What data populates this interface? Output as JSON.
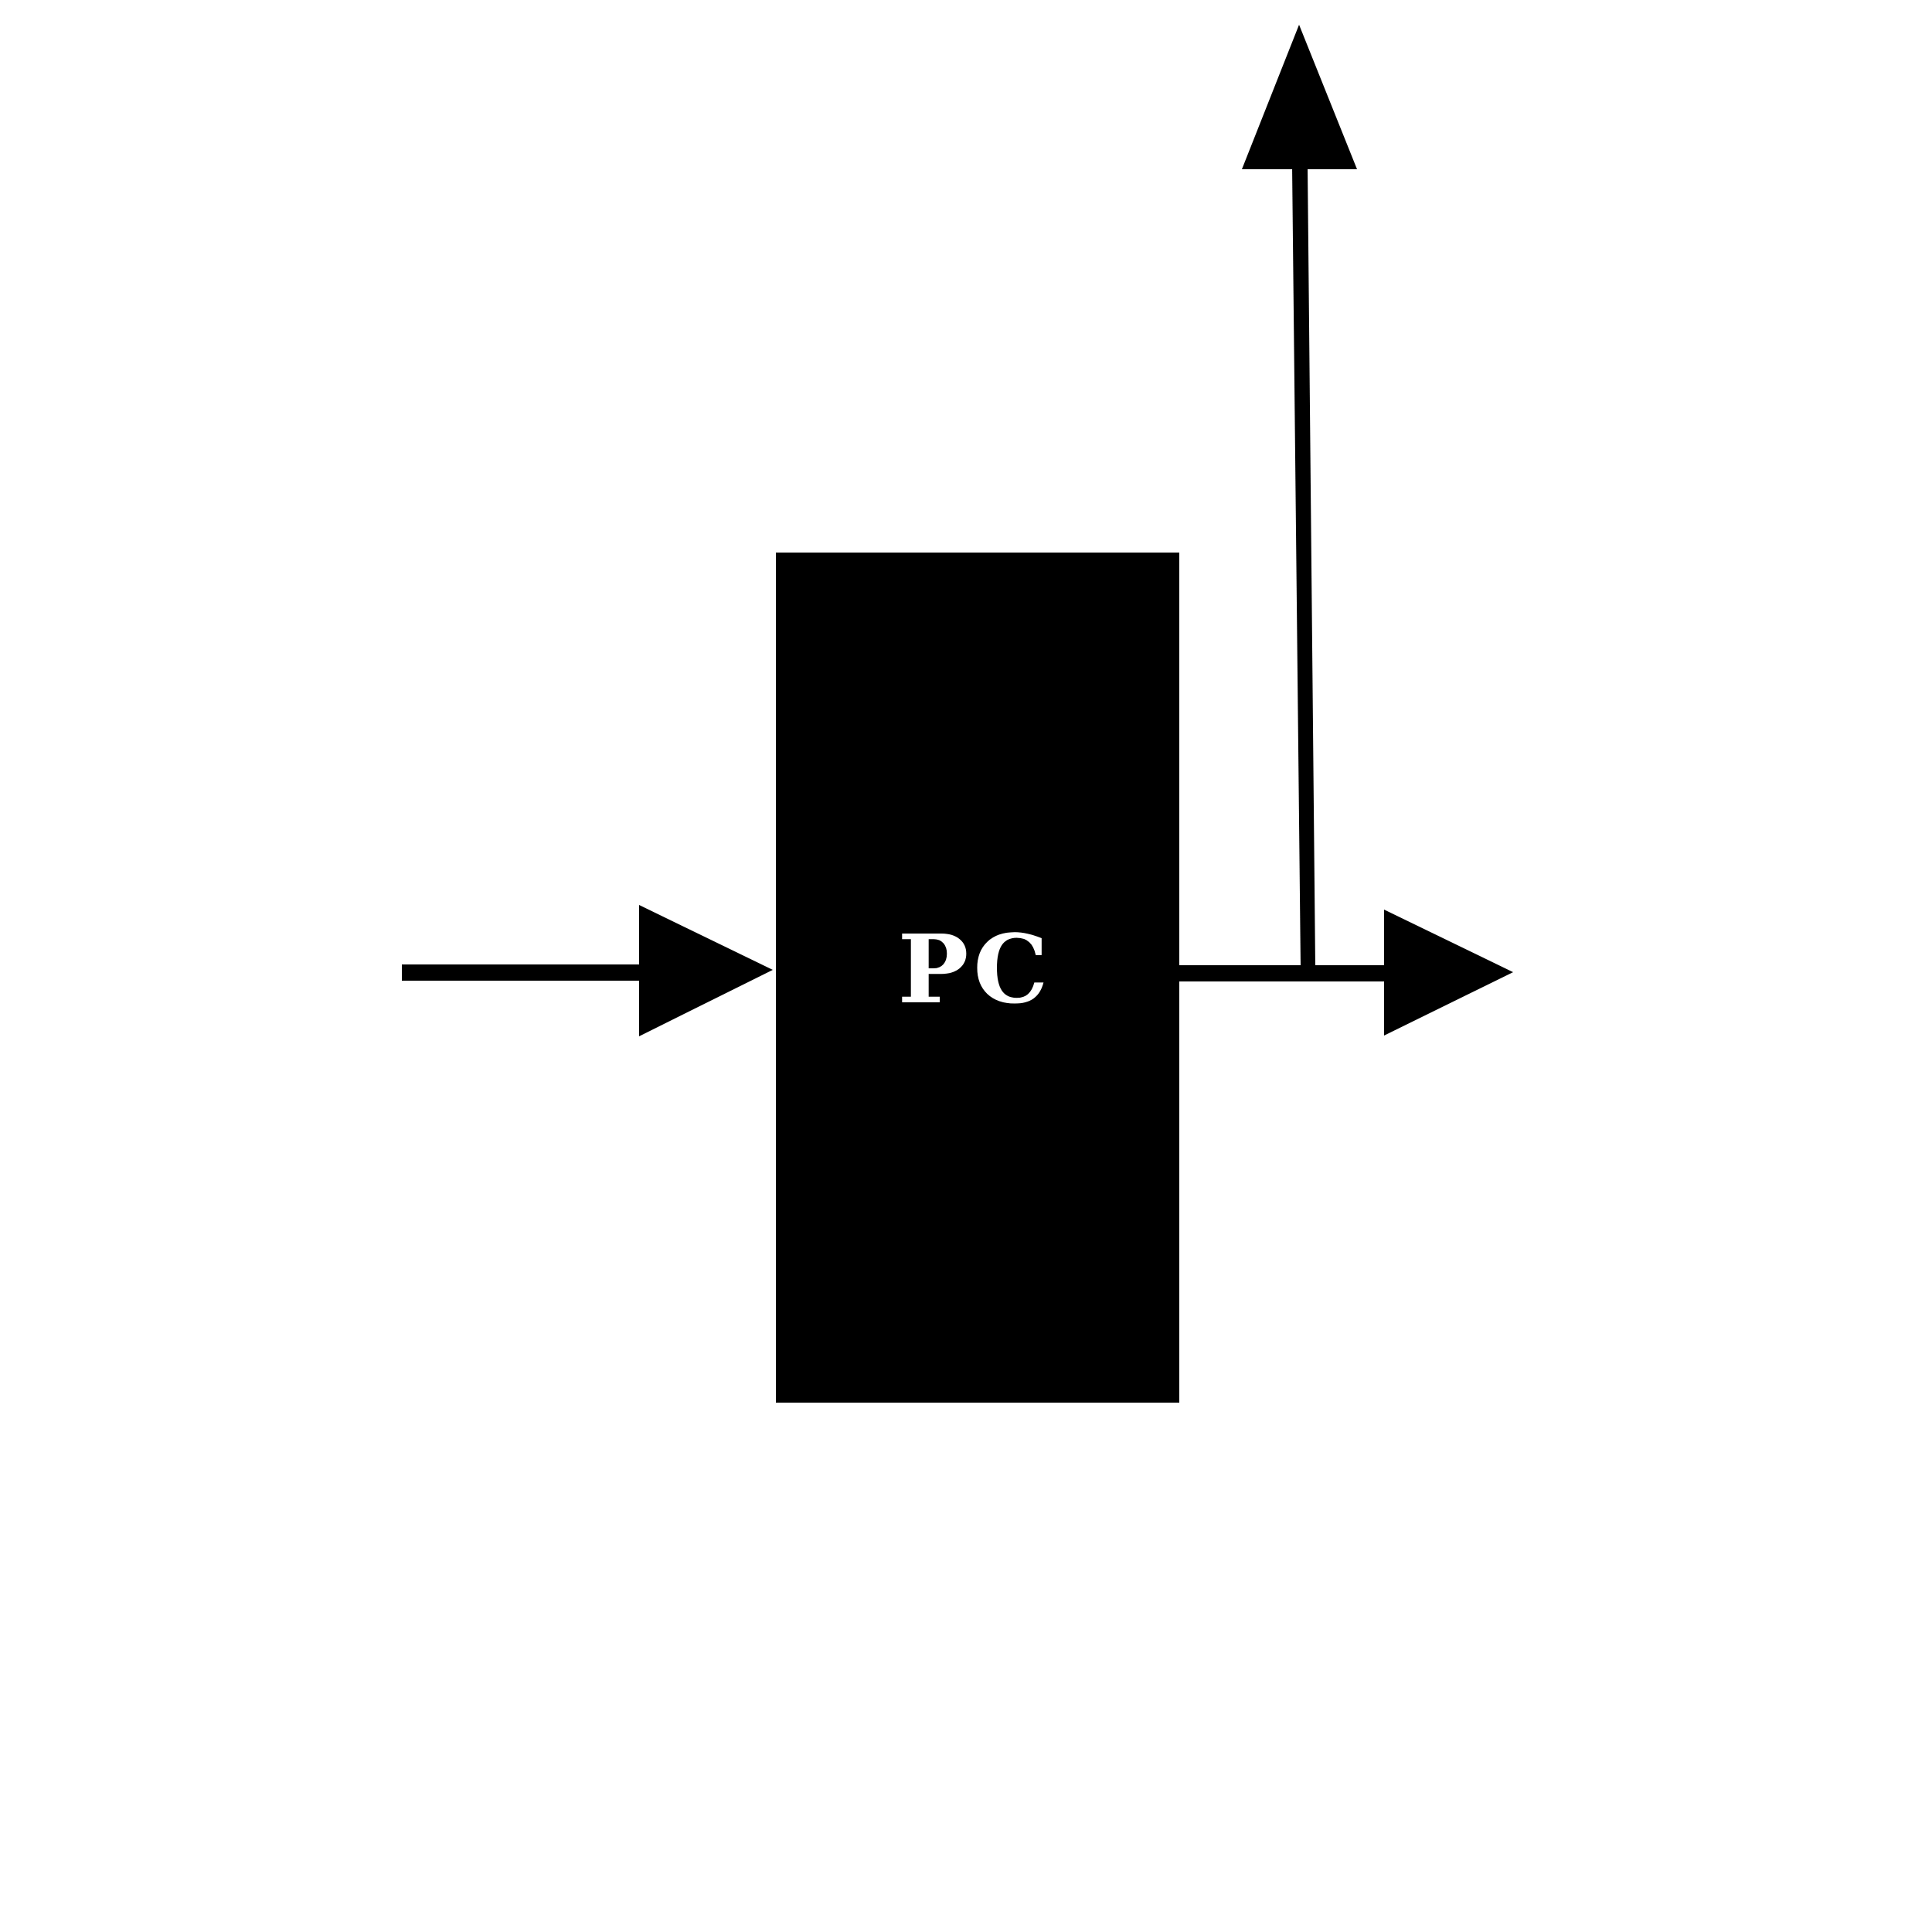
{
  "block": {
    "label": "PC"
  },
  "colors": {
    "stroke": "#000000",
    "block_fill": "#000000",
    "label_text": "#ffffff",
    "background": "#ffffff"
  }
}
